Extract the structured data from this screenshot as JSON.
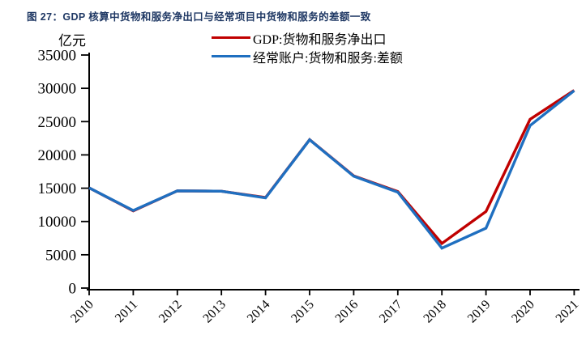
{
  "page": {
    "title": "图 27：GDP 核算中货物和服务净出口与经常项目中货物和服务的差额一致",
    "unit_label": "亿元"
  },
  "legend": {
    "items": [
      {
        "label": "GDP:货物和服务净出口",
        "color": "#C00000"
      },
      {
        "label": "经常账户:货物和服务:差额",
        "color": "#1F6FC0"
      }
    ]
  },
  "colors": {
    "title_navy": "#1F3864",
    "axis_black": "#000000",
    "gdp_red": "#C00000",
    "current_account_blue": "#1F6FC0"
  },
  "chart_data": {
    "type": "line",
    "figure_label": "图 27",
    "title": "GDP 核算中货物和服务净出口与经常项目中货物和服务的差额一致",
    "ylabel": "亿元",
    "xlabel": "",
    "categories": [
      "2010",
      "2011",
      "2012",
      "2013",
      "2014",
      "2015",
      "2016",
      "2017",
      "2018",
      "2019",
      "2020",
      "2021"
    ],
    "series": [
      {
        "name": "GDP:货物和服务净出口",
        "color": "#C00000",
        "values": [
          15050,
          11600,
          14600,
          14550,
          13600,
          22300,
          16850,
          14500,
          6700,
          11500,
          25350,
          29700
        ]
      },
      {
        "name": "经常账户:货物和服务:差额",
        "color": "#1F6FC0",
        "values": [
          15050,
          11650,
          14600,
          14550,
          13550,
          22270,
          16800,
          14400,
          6000,
          9000,
          24400,
          29650
        ]
      }
    ],
    "ylim": [
      0,
      35000
    ],
    "ytick_step": 5000,
    "yticks": [
      0,
      5000,
      10000,
      15000,
      20000,
      25000,
      30000,
      35000
    ],
    "grid": false,
    "legend_position": "top-center",
    "x_label_rotation": -45
  }
}
